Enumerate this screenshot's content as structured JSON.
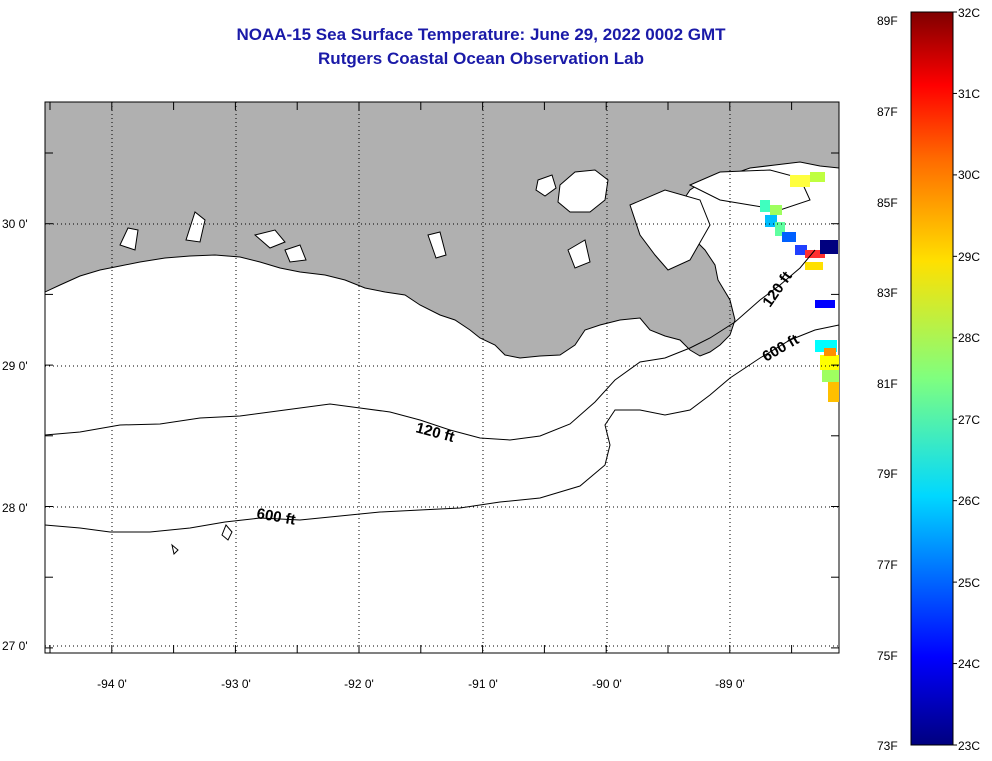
{
  "title": "NOAA-15 Sea Surface Temperature:  June 29, 2022 0002 GMT",
  "subtitle": "Rutgers Coastal Ocean Observation Lab",
  "lat_labels": [
    "30 0'",
    "29 0'",
    "28 0'",
    "27 0'"
  ],
  "lon_labels": [
    "-94 0'",
    "-93 0'",
    "-92 0'",
    "-91 0'",
    "-90 0'",
    "-89 0'"
  ],
  "contour_labels": [
    "120 ft",
    "600 ft",
    "120 ft",
    "600 ft"
  ],
  "colorbar": {
    "f_labels": [
      "89F",
      "87F",
      "85F",
      "83F",
      "81F",
      "79F",
      "77F",
      "75F",
      "73F"
    ],
    "c_labels": [
      "32C",
      "31C",
      "30C",
      "29C",
      "28C",
      "27C",
      "26C",
      "25C",
      "24C",
      "23C"
    ],
    "min_c": 23,
    "max_c": 32
  },
  "colors": {
    "land": "#b0b0b0",
    "title": "#1a1aa8"
  }
}
